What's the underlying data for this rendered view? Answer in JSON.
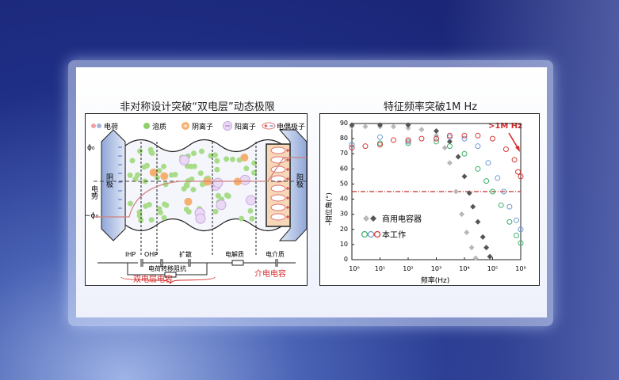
{
  "left_panel": {
    "title": "非对称设计突破“双电层”动态极限",
    "legend": [
      {
        "label": "电荷",
        "icon": "charge-icon"
      },
      {
        "label": "溶质",
        "icon": "solute-icon"
      },
      {
        "label": "阴离子",
        "icon": "anion-icon"
      },
      {
        "label": "阳离子",
        "icon": "cation-icon"
      },
      {
        "label": "电偶极子",
        "icon": "dipole-icon"
      }
    ],
    "phi_top": "ϕ₀",
    "phi_bottom": "−ϕ₀",
    "potential_label": "电势",
    "left_electrode": "阴极",
    "right_electrode": "阳极",
    "regions": [
      "IHP",
      "OHP",
      "扩散",
      "电解质",
      "电介质"
    ],
    "charge_transfer_label": "电荷转移阻抗",
    "edl_capacitance": "双电层电容",
    "dielectric_capacitance": "介电电容",
    "colors": {
      "red": "#d62a2a",
      "green": "#6cc24a",
      "orange": "#f0a050",
      "purple": "#c9a8e0",
      "blue": "#5d8fd0"
    }
  },
  "chart_data": {
    "type": "scatter",
    "title": "特征频率突破1M Hz",
    "xlabel": "频率(Hz)",
    "ylabel": "-相位角(°)",
    "xscale": "log",
    "xlim": [
      1,
      1000000
    ],
    "ylim": [
      0,
      90
    ],
    "xticks": [
      "10⁰",
      "10¹",
      "10²",
      "10³",
      "10⁴",
      "10⁵",
      "10⁶"
    ],
    "yticks": [
      0,
      10,
      20,
      30,
      40,
      50,
      60,
      70,
      80,
      90
    ],
    "reference_line": {
      "y": 45,
      "color": "#c0302a",
      "style": "dash-dot"
    },
    "annotation": {
      "text": ">1M Hz",
      "color": "#d62a2a"
    },
    "legend": [
      {
        "label": "商用电容器",
        "markers": "diamond",
        "colors": [
          "#b8b8b8",
          "#555555"
        ]
      },
      {
        "label": "本工作",
        "markers": "circle",
        "colors": [
          "#3db06a",
          "#6f9ad0",
          "#d63a3a"
        ]
      }
    ],
    "series": [
      {
        "group": "商用电容器",
        "marker": "diamond",
        "color": "#b8b8b8",
        "x": [
          1,
          3,
          10,
          30,
          100,
          300,
          1000,
          2000,
          3000,
          5000,
          8000,
          12000,
          18000,
          25000
        ],
        "y": [
          88,
          88,
          88,
          88,
          87,
          86,
          82,
          74,
          64,
          45,
          30,
          18,
          8,
          1
        ]
      },
      {
        "group": "商用电容器",
        "marker": "diamond",
        "color": "#555555",
        "x": [
          1,
          10,
          100,
          1000,
          3000,
          6000,
          10000,
          15000,
          20000,
          30000,
          45000,
          60000,
          80000
        ],
        "y": [
          89,
          89,
          89,
          85,
          78,
          68,
          55,
          44,
          35,
          25,
          15,
          8,
          2
        ]
      },
      {
        "group": "本工作",
        "marker": "circle",
        "color": "#3db06a",
        "x": [
          1,
          10,
          100,
          1000,
          3000,
          10000,
          30000,
          60000,
          100000,
          200000,
          400000,
          700000,
          1000000
        ],
        "y": [
          76,
          77,
          77,
          78,
          75,
          70,
          60,
          52,
          45,
          36,
          25,
          16,
          11
        ]
      },
      {
        "group": "本工作",
        "marker": "circle",
        "color": "#6f9ad0",
        "x": [
          1,
          10,
          100,
          1000,
          3000,
          10000,
          30000,
          70000,
          150000,
          250000,
          400000,
          700000,
          1000000
        ],
        "y": [
          76,
          81,
          78,
          80,
          81,
          80,
          75,
          64,
          54,
          45,
          35,
          26,
          20
        ]
      },
      {
        "group": "本工作",
        "marker": "circle",
        "color": "#d63a3a",
        "x": [
          1,
          3,
          10,
          30,
          100,
          300,
          1000,
          3000,
          10000,
          30000,
          100000,
          300000,
          600000,
          800000,
          1000000
        ],
        "y": [
          74,
          75,
          76,
          79,
          79,
          80,
          80,
          82,
          82,
          82,
          80,
          73,
          66,
          58,
          55
        ]
      }
    ]
  }
}
